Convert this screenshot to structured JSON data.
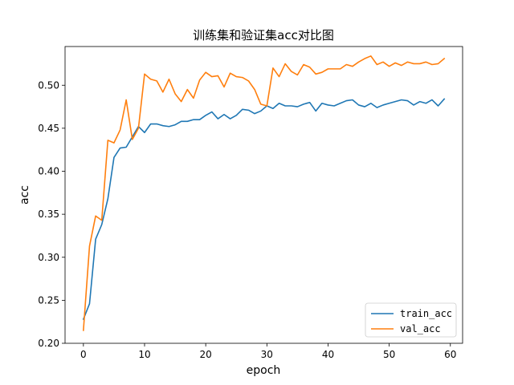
{
  "chart_data": {
    "type": "line",
    "title": "训练集和验证集acc对比图",
    "xlabel": "epoch",
    "ylabel": "acc",
    "xlim": [
      -3,
      62
    ],
    "ylim": [
      0.2,
      0.545
    ],
    "xticks": [
      0,
      10,
      20,
      30,
      40,
      50,
      60
    ],
    "yticks": [
      0.2,
      0.25,
      0.3,
      0.35,
      0.4,
      0.45,
      0.5
    ],
    "xtick_labels": [
      "0",
      "10",
      "20",
      "30",
      "40",
      "50",
      "60"
    ],
    "ytick_labels": [
      "0.20",
      "0.25",
      "0.30",
      "0.35",
      "0.40",
      "0.45",
      "0.50"
    ],
    "grid": false,
    "legend_position": "lower-right",
    "x": [
      0,
      1,
      2,
      3,
      4,
      5,
      6,
      7,
      8,
      9,
      10,
      11,
      12,
      13,
      14,
      15,
      16,
      17,
      18,
      19,
      20,
      21,
      22,
      23,
      24,
      25,
      26,
      27,
      28,
      29,
      30,
      31,
      32,
      33,
      34,
      35,
      36,
      37,
      38,
      39,
      40,
      41,
      42,
      43,
      44,
      45,
      46,
      47,
      48,
      49,
      50,
      51,
      52,
      53,
      54,
      55,
      56,
      57,
      58,
      59
    ],
    "series": [
      {
        "name": "train_acc",
        "color": "#1f77b4",
        "values": [
          0.228,
          0.246,
          0.321,
          0.338,
          0.368,
          0.416,
          0.427,
          0.428,
          0.44,
          0.452,
          0.445,
          0.455,
          0.455,
          0.453,
          0.452,
          0.454,
          0.458,
          0.458,
          0.46,
          0.46,
          0.465,
          0.469,
          0.461,
          0.466,
          0.461,
          0.465,
          0.472,
          0.471,
          0.467,
          0.47,
          0.476,
          0.473,
          0.479,
          0.476,
          0.476,
          0.475,
          0.478,
          0.48,
          0.47,
          0.479,
          0.477,
          0.476,
          0.479,
          0.482,
          0.483,
          0.477,
          0.475,
          0.479,
          0.474,
          0.477,
          0.479,
          0.481,
          0.483,
          0.482,
          0.477,
          0.481,
          0.479,
          0.483,
          0.476,
          0.484
        ]
      },
      {
        "name": "val_acc",
        "color": "#ff7f0e",
        "values": [
          0.215,
          0.313,
          0.348,
          0.343,
          0.436,
          0.433,
          0.448,
          0.483,
          0.437,
          0.45,
          0.513,
          0.507,
          0.505,
          0.492,
          0.507,
          0.49,
          0.481,
          0.495,
          0.485,
          0.506,
          0.515,
          0.51,
          0.511,
          0.498,
          0.514,
          0.51,
          0.509,
          0.505,
          0.495,
          0.478,
          0.476,
          0.52,
          0.51,
          0.525,
          0.516,
          0.512,
          0.524,
          0.521,
          0.513,
          0.515,
          0.519,
          0.519,
          0.519,
          0.524,
          0.522,
          0.527,
          0.531,
          0.534,
          0.524,
          0.527,
          0.522,
          0.526,
          0.523,
          0.527,
          0.525,
          0.525,
          0.527,
          0.524,
          0.525,
          0.531
        ]
      }
    ]
  }
}
